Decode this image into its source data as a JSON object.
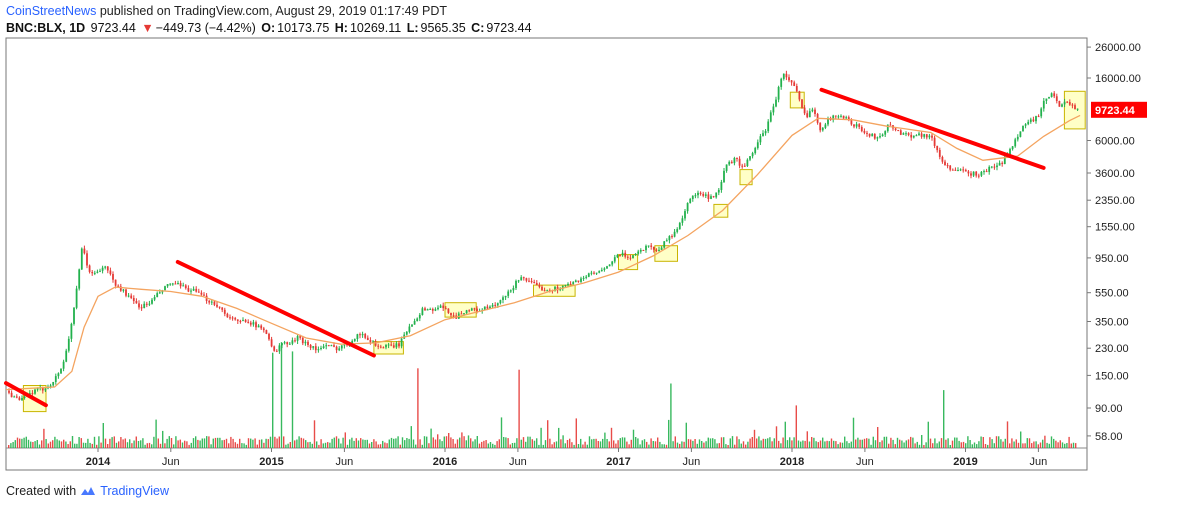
{
  "header": {
    "publisher": "CoinStreetNews",
    "published_text": "published on TradingView.com, August 29, 2019 01:17:49 PDT"
  },
  "ohlc": {
    "symbol": "BNC:BLX, 1D",
    "last": "9723.44",
    "change": "−449.73 (−4.42%)",
    "o_label": "O:",
    "o_value": "10173.75",
    "h_label": "H:",
    "h_value": "10269.11",
    "l_label": "L:",
    "l_value": "9565.35",
    "c_label": "C:",
    "c_value": "9723.44",
    "down_arrow": "▼"
  },
  "footer": {
    "created_with": "Created with",
    "brand": "TradingView"
  },
  "colors": {
    "up": "#22b14c",
    "down": "#e53935",
    "ma": "#f4a460",
    "trendline": "#ff0000",
    "highlight_fill": "#ffff99",
    "highlight_stroke": "#c9b400",
    "brand": "#2962ff"
  },
  "chart_data": {
    "type": "candlestick",
    "title": "BNC:BLX, 1D",
    "yscale": "log",
    "ylim": [
      48,
      30000
    ],
    "last_price_label": "9723.44",
    "y_ticks": [
      26000,
      16000,
      9723.44,
      6000,
      3600,
      2350,
      1550,
      950,
      550,
      350,
      230,
      150,
      90,
      58
    ],
    "y_tick_labels": [
      "26000.00",
      "16000.00",
      "9723.44",
      "6000.00",
      "3600.00",
      "2350.00",
      "1550.00",
      "950.00",
      "550.00",
      "350.00",
      "230.00",
      "150.00",
      "90.00",
      "58.00"
    ],
    "x_ticks": [
      {
        "label": "2014",
        "t": 2014.0,
        "bold": true
      },
      {
        "label": "Jun",
        "t": 2014.42,
        "bold": false
      },
      {
        "label": "2015",
        "t": 2015.0,
        "bold": true
      },
      {
        "label": "Jun",
        "t": 2015.42,
        "bold": false
      },
      {
        "label": "2016",
        "t": 2016.0,
        "bold": true
      },
      {
        "label": "Jun",
        "t": 2016.42,
        "bold": false
      },
      {
        "label": "2017",
        "t": 2017.0,
        "bold": true
      },
      {
        "label": "Jun",
        "t": 2017.42,
        "bold": false
      },
      {
        "label": "2018",
        "t": 2018.0,
        "bold": true
      },
      {
        "label": "Jun",
        "t": 2018.42,
        "bold": false
      },
      {
        "label": "2019",
        "t": 2019.0,
        "bold": true
      },
      {
        "label": "Jun",
        "t": 2019.42,
        "bold": false
      }
    ],
    "xlim": [
      2013.47,
      2019.7
    ],
    "price_path": [
      [
        2013.47,
        118
      ],
      [
        2013.55,
        100
      ],
      [
        2013.62,
        115
      ],
      [
        2013.7,
        124
      ],
      [
        2013.75,
        140
      ],
      [
        2013.8,
        180
      ],
      [
        2013.84,
        300
      ],
      [
        2013.88,
        600
      ],
      [
        2013.91,
        1150
      ],
      [
        2013.94,
        820
      ],
      [
        2013.97,
        720
      ],
      [
        2014.0,
        780
      ],
      [
        2014.05,
        820
      ],
      [
        2014.1,
        620
      ],
      [
        2014.15,
        560
      ],
      [
        2014.2,
        480
      ],
      [
        2014.25,
        440
      ],
      [
        2014.3,
        470
      ],
      [
        2014.36,
        560
      ],
      [
        2014.42,
        640
      ],
      [
        2014.46,
        620
      ],
      [
        2014.5,
        590
      ],
      [
        2014.56,
        560
      ],
      [
        2014.62,
        500
      ],
      [
        2014.68,
        460
      ],
      [
        2014.74,
        390
      ],
      [
        2014.8,
        345
      ],
      [
        2014.86,
        360
      ],
      [
        2014.92,
        320
      ],
      [
        2014.97,
        300
      ],
      [
        2015.02,
        210
      ],
      [
        2015.06,
        250
      ],
      [
        2015.1,
        245
      ],
      [
        2015.15,
        270
      ],
      [
        2015.2,
        250
      ],
      [
        2015.26,
        225
      ],
      [
        2015.32,
        238
      ],
      [
        2015.38,
        230
      ],
      [
        2015.44,
        248
      ],
      [
        2015.5,
        290
      ],
      [
        2015.55,
        270
      ],
      [
        2015.62,
        235
      ],
      [
        2015.68,
        236
      ],
      [
        2015.74,
        245
      ],
      [
        2015.79,
        320
      ],
      [
        2015.84,
        380
      ],
      [
        2015.88,
        430
      ],
      [
        2015.93,
        420
      ],
      [
        2015.97,
        440
      ],
      [
        2016.02,
        410
      ],
      [
        2016.06,
        375
      ],
      [
        2016.12,
        420
      ],
      [
        2016.18,
        418
      ],
      [
        2016.24,
        430
      ],
      [
        2016.3,
        455
      ],
      [
        2016.36,
        535
      ],
      [
        2016.44,
        720
      ],
      [
        2016.49,
        640
      ],
      [
        2016.55,
        590
      ],
      [
        2016.62,
        580
      ],
      [
        2016.68,
        605
      ],
      [
        2016.74,
        640
      ],
      [
        2016.8,
        705
      ],
      [
        2016.86,
        745
      ],
      [
        2016.92,
        780
      ],
      [
        2016.98,
        960
      ],
      [
        2017.02,
        1000
      ],
      [
        2017.06,
        960
      ],
      [
        2017.12,
        1050
      ],
      [
        2017.18,
        1180
      ],
      [
        2017.22,
        1040
      ],
      [
        2017.28,
        1280
      ],
      [
        2017.32,
        1380
      ],
      [
        2017.36,
        1700
      ],
      [
        2017.4,
        2300
      ],
      [
        2017.45,
        2600
      ],
      [
        2017.5,
        2500
      ],
      [
        2017.54,
        2400
      ],
      [
        2017.58,
        2700
      ],
      [
        2017.62,
        4100
      ],
      [
        2017.68,
        4500
      ],
      [
        2017.72,
        3800
      ],
      [
        2017.76,
        4700
      ],
      [
        2017.8,
        5800
      ],
      [
        2017.85,
        7200
      ],
      [
        2017.9,
        11000
      ],
      [
        2017.95,
        17500
      ],
      [
        2017.98,
        15500
      ],
      [
        2018.02,
        13500
      ],
      [
        2018.05,
        10500
      ],
      [
        2018.08,
        8500
      ],
      [
        2018.12,
        10200
      ],
      [
        2018.16,
        7200
      ],
      [
        2018.2,
        8100
      ],
      [
        2018.26,
        9100
      ],
      [
        2018.32,
        8300
      ],
      [
        2018.38,
        7400
      ],
      [
        2018.44,
        6500
      ],
      [
        2018.5,
        6300
      ],
      [
        2018.56,
        7700
      ],
      [
        2018.62,
        6800
      ],
      [
        2018.68,
        6500
      ],
      [
        2018.74,
        6600
      ],
      [
        2018.8,
        6400
      ],
      [
        2018.86,
        4400
      ],
      [
        2018.92,
        3800
      ],
      [
        2018.97,
        3700
      ],
      [
        2019.02,
        3600
      ],
      [
        2019.08,
        3500
      ],
      [
        2019.14,
        3900
      ],
      [
        2019.2,
        4100
      ],
      [
        2019.26,
        5200
      ],
      [
        2019.32,
        7300
      ],
      [
        2019.37,
        8100
      ],
      [
        2019.42,
        8700
      ],
      [
        2019.46,
        11500
      ],
      [
        2019.5,
        12400
      ],
      [
        2019.54,
        10500
      ],
      [
        2019.58,
        11300
      ],
      [
        2019.62,
        10100
      ],
      [
        2019.66,
        9723.44
      ]
    ],
    "moving_average": [
      [
        2013.47,
        120
      ],
      [
        2013.75,
        125
      ],
      [
        2013.85,
        160
      ],
      [
        2013.92,
        320
      ],
      [
        2014.0,
        520
      ],
      [
        2014.1,
        600
      ],
      [
        2014.25,
        580
      ],
      [
        2014.42,
        560
      ],
      [
        2014.6,
        520
      ],
      [
        2014.8,
        430
      ],
      [
        2015.0,
        340
      ],
      [
        2015.2,
        270
      ],
      [
        2015.4,
        245
      ],
      [
        2015.6,
        250
      ],
      [
        2015.8,
        280
      ],
      [
        2016.0,
        360
      ],
      [
        2016.2,
        410
      ],
      [
        2016.4,
        470
      ],
      [
        2016.6,
        560
      ],
      [
        2016.8,
        640
      ],
      [
        2017.0,
        760
      ],
      [
        2017.2,
        980
      ],
      [
        2017.4,
        1350
      ],
      [
        2017.6,
        2000
      ],
      [
        2017.8,
        3500
      ],
      [
        2018.0,
        6500
      ],
      [
        2018.15,
        8500
      ],
      [
        2018.35,
        8300
      ],
      [
        2018.55,
        7500
      ],
      [
        2018.8,
        6800
      ],
      [
        2018.95,
        5300
      ],
      [
        2019.1,
        4400
      ],
      [
        2019.3,
        4700
      ],
      [
        2019.45,
        6400
      ],
      [
        2019.6,
        8200
      ],
      [
        2019.66,
        8900
      ]
    ],
    "trendlines": [
      {
        "from": [
          2013.47,
          133
        ],
        "to": [
          2013.7,
          94
        ]
      },
      {
        "from": [
          2014.46,
          890
        ],
        "to": [
          2015.59,
          205
        ]
      },
      {
        "from": [
          2018.17,
          13300
        ],
        "to": [
          2019.45,
          3900
        ]
      }
    ],
    "highlight_boxes": [
      {
        "t0": 2013.57,
        "t1": 2013.7,
        "p0": 85,
        "p1": 128
      },
      {
        "t0": 2015.59,
        "t1": 2015.76,
        "p0": 210,
        "p1": 255
      },
      {
        "t0": 2016.0,
        "t1": 2016.18,
        "p0": 375,
        "p1": 470
      },
      {
        "t0": 2016.51,
        "t1": 2016.75,
        "p0": 520,
        "p1": 620
      },
      {
        "t0": 2017.0,
        "t1": 2017.11,
        "p0": 790,
        "p1": 1000
      },
      {
        "t0": 2017.21,
        "t1": 2017.34,
        "p0": 900,
        "p1": 1150
      },
      {
        "t0": 2017.55,
        "t1": 2017.63,
        "p0": 1800,
        "p1": 2200
      },
      {
        "t0": 2017.7,
        "t1": 2017.77,
        "p0": 3000,
        "p1": 3800
      },
      {
        "t0": 2017.99,
        "t1": 2018.07,
        "p0": 10000,
        "p1": 12800
      },
      {
        "t0": 2019.57,
        "t1": 2019.69,
        "p0": 7200,
        "p1": 13000
      }
    ],
    "volume": {
      "ylim_note": "relative",
      "spike_t": [
        2014.5,
        2015.0,
        2015.05,
        2015.12,
        2015.84,
        2015.92,
        2016.42,
        2017.3,
        2017.86,
        2018.02,
        2018.87
      ]
    }
  }
}
